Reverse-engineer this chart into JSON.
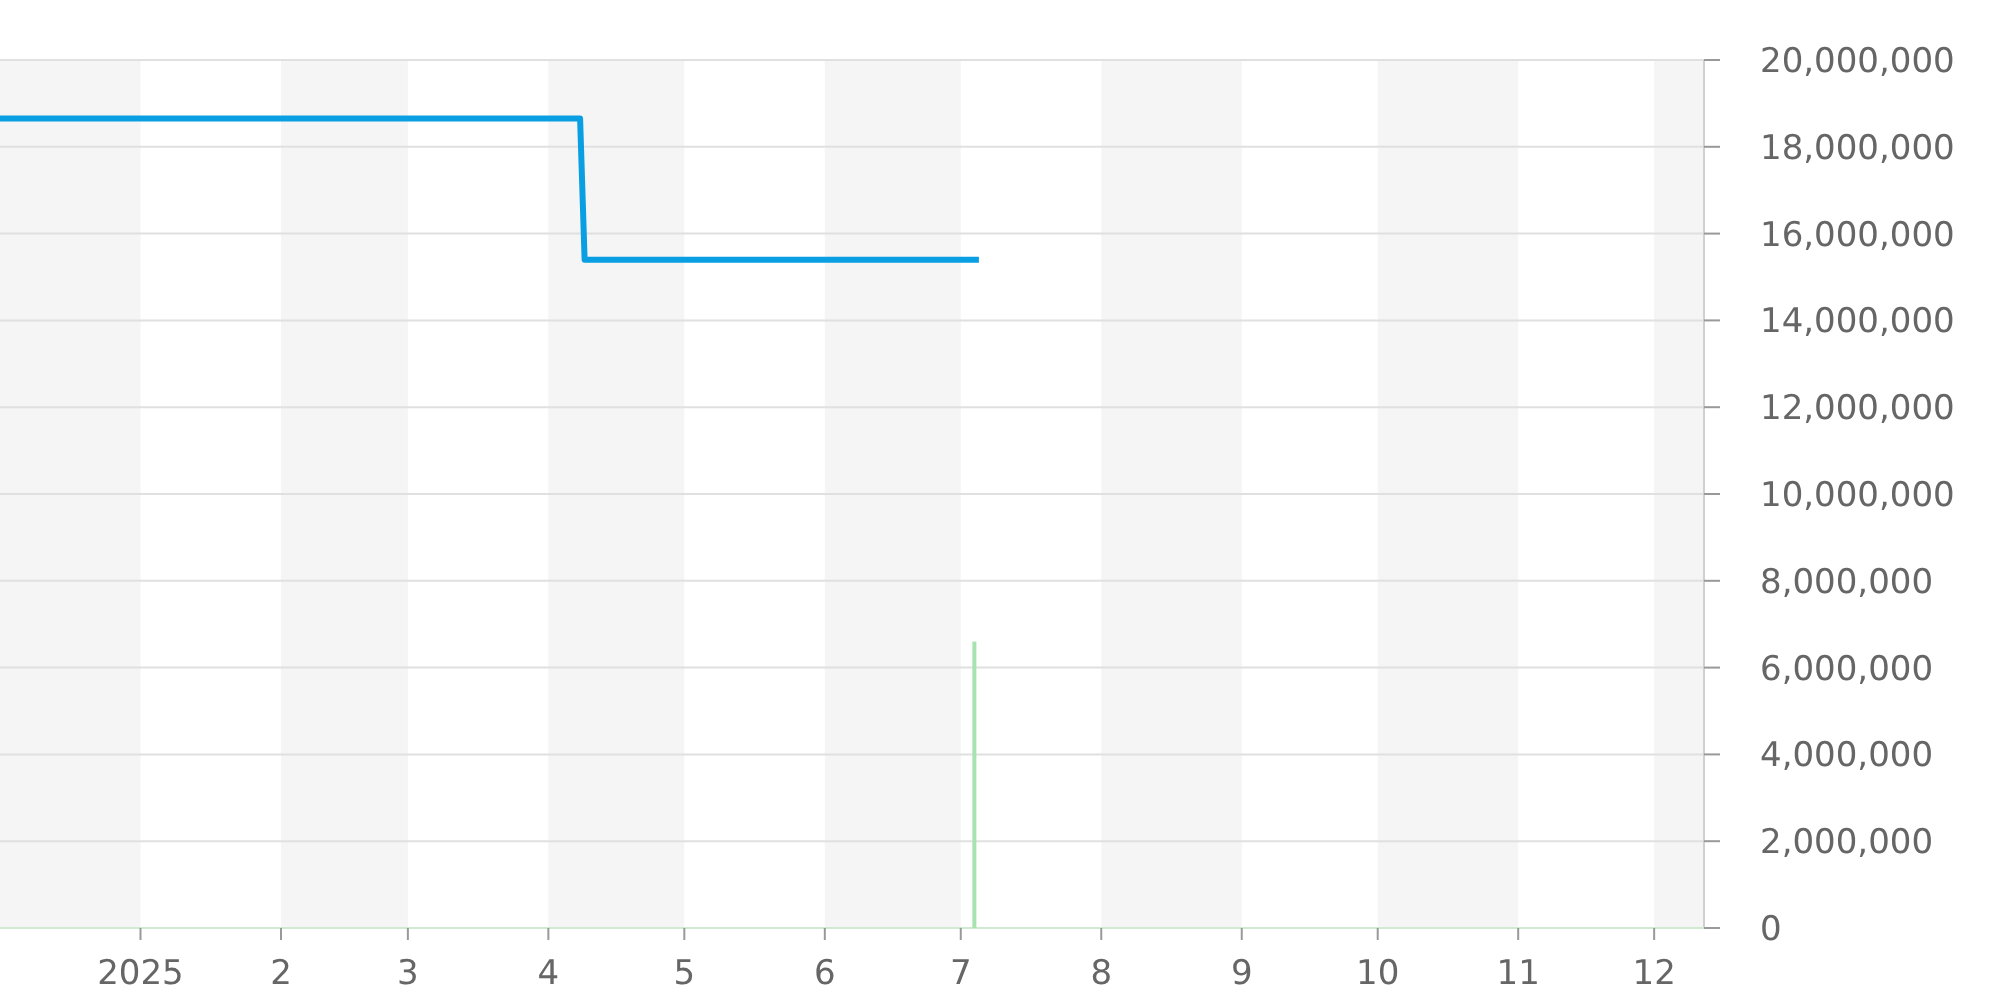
{
  "chart_data": {
    "type": "line",
    "series": [
      {
        "color": "#0a9fe2",
        "x": [
          "2024-12-01",
          "2025-04-08",
          "2025-04-09",
          "2025-07-05"
        ],
        "values": [
          18650000,
          18650000,
          15400000,
          15400000
        ]
      },
      {
        "type": "bar",
        "color": "#a6e3b0",
        "x": [
          "2025-07-04"
        ],
        "values": [
          6600000
        ]
      }
    ],
    "xlim": [
      "2024-12-01",
      "2025-12-12"
    ],
    "xticks": [
      {
        "value": "2025-01-01",
        "label": "2025"
      },
      {
        "value": "2025-02-01",
        "label": "2"
      },
      {
        "value": "2025-03-01",
        "label": "3"
      },
      {
        "value": "2025-04-01",
        "label": "4"
      },
      {
        "value": "2025-05-01",
        "label": "5"
      },
      {
        "value": "2025-06-01",
        "label": "6"
      },
      {
        "value": "2025-07-01",
        "label": "7"
      },
      {
        "value": "2025-08-01",
        "label": "8"
      },
      {
        "value": "2025-09-01",
        "label": "9"
      },
      {
        "value": "2025-10-01",
        "label": "10"
      },
      {
        "value": "2025-11-01",
        "label": "11"
      },
      {
        "value": "2025-12-01",
        "label": "12"
      }
    ],
    "ylim": [
      0,
      20000000
    ],
    "yticks": [
      {
        "value": 0,
        "label": "0"
      },
      {
        "value": 2000000,
        "label": "2,000,000"
      },
      {
        "value": 4000000,
        "label": "4,000,000"
      },
      {
        "value": 6000000,
        "label": "6,000,000"
      },
      {
        "value": 8000000,
        "label": "8,000,000"
      },
      {
        "value": 10000000,
        "label": "10,000,000"
      },
      {
        "value": 12000000,
        "label": "12,000,000"
      },
      {
        "value": 14000000,
        "label": "14,000,000"
      },
      {
        "value": 16000000,
        "label": "16,000,000"
      },
      {
        "value": 18000000,
        "label": "18,000,000"
      },
      {
        "value": 20000000,
        "label": "20,000,000"
      }
    ],
    "grid": "y",
    "bands": [
      {
        "axis": "x",
        "from": "2024-12-01",
        "to": "2025-01-01",
        "color": "#f5f5f5"
      },
      {
        "axis": "x",
        "from": "2025-02-01",
        "to": "2025-03-01",
        "color": "#f5f5f5"
      },
      {
        "axis": "x",
        "from": "2025-04-01",
        "to": "2025-05-01",
        "color": "#f5f5f5"
      },
      {
        "axis": "x",
        "from": "2025-06-01",
        "to": "2025-07-01",
        "color": "#f5f5f5"
      },
      {
        "axis": "x",
        "from": "2025-08-01",
        "to": "2025-09-01",
        "color": "#f5f5f5"
      },
      {
        "axis": "x",
        "from": "2025-10-01",
        "to": "2025-11-01",
        "color": "#f5f5f5"
      },
      {
        "axis": "x",
        "from": "2025-12-01",
        "to": "2025-12-12",
        "color": "#f5f5f5"
      }
    ]
  }
}
